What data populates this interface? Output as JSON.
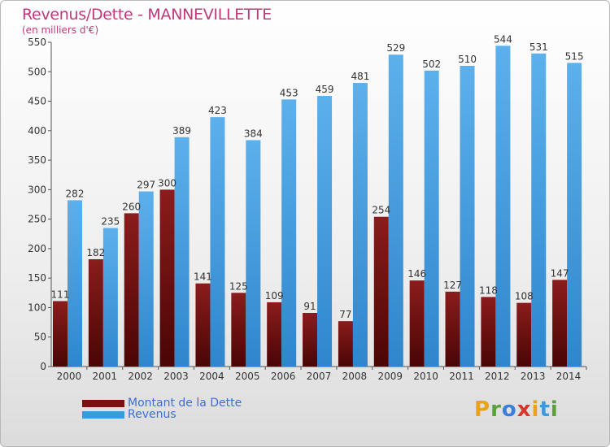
{
  "header": {
    "title": "Revenus/Dette - MANNEVILLETTE",
    "subtitle": "(en milliers d'€)"
  },
  "legend": [
    {
      "label": "Montant de la Dette",
      "color": "#7a1010"
    },
    {
      "label": "Revenus",
      "color": "#3a9ae0"
    }
  ],
  "logo": {
    "text": "Proxiti"
  },
  "colors": {
    "debt_top": "#8b1c1c",
    "debt_bottom": "#4a0505",
    "rev_top": "#5cb0ec",
    "rev_bottom": "#2f86cc",
    "axis_text": "#333333"
  },
  "chart_data": {
    "type": "bar",
    "title": "Revenus/Dette - MANNEVILLETTE",
    "ylabel": "(en milliers d'€)",
    "categories": [
      "2000",
      "2001",
      "2002",
      "2003",
      "2004",
      "2005",
      "2006",
      "2007",
      "2008",
      "2009",
      "2010",
      "2011",
      "2012",
      "2013",
      "2014"
    ],
    "series": [
      {
        "name": "Montant de la Dette",
        "values": [
          111,
          182,
          260,
          300,
          141,
          125,
          109,
          91,
          77,
          254,
          146,
          127,
          118,
          108,
          147
        ]
      },
      {
        "name": "Revenus",
        "values": [
          282,
          235,
          297,
          389,
          423,
          384,
          453,
          459,
          481,
          529,
          502,
          510,
          544,
          531,
          515
        ]
      }
    ],
    "ylim": [
      0,
      550
    ],
    "yticks": [
      0,
      50,
      100,
      150,
      200,
      250,
      300,
      350,
      400,
      450,
      500,
      550
    ],
    "grid": false,
    "legend_position": "bottom-left"
  }
}
